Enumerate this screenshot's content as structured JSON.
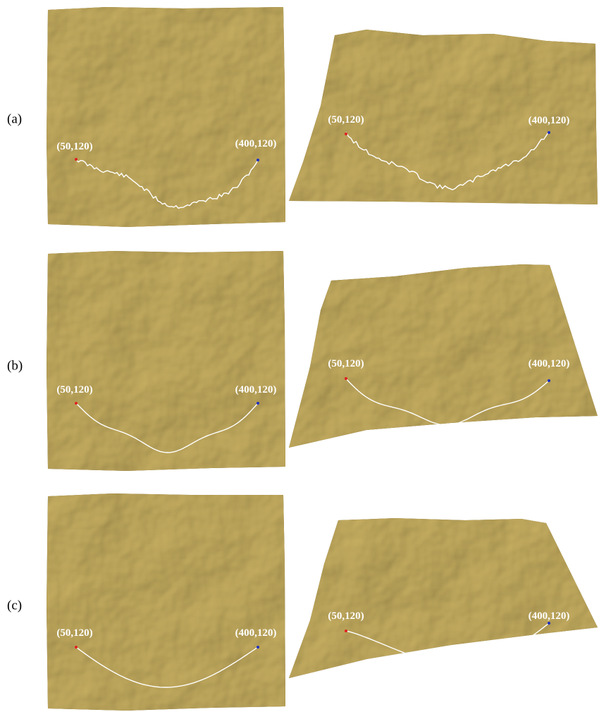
{
  "rows": [
    {
      "label": "(a)",
      "panels": [
        {
          "start": "(50,120)",
          "end": "(400,120)"
        },
        {
          "start": "(50,120)",
          "end": "(400,120)"
        }
      ]
    },
    {
      "label": "(b)",
      "panels": [
        {
          "start": "(50,120)",
          "end": "(400,120)"
        },
        {
          "start": "(50,120)",
          "end": "(400,120)"
        }
      ]
    },
    {
      "label": "(c)",
      "panels": [
        {
          "start": "(50,120)",
          "end": "(400,120)"
        },
        {
          "start": "(50,120)",
          "end": "(400,120)"
        }
      ]
    }
  ]
}
